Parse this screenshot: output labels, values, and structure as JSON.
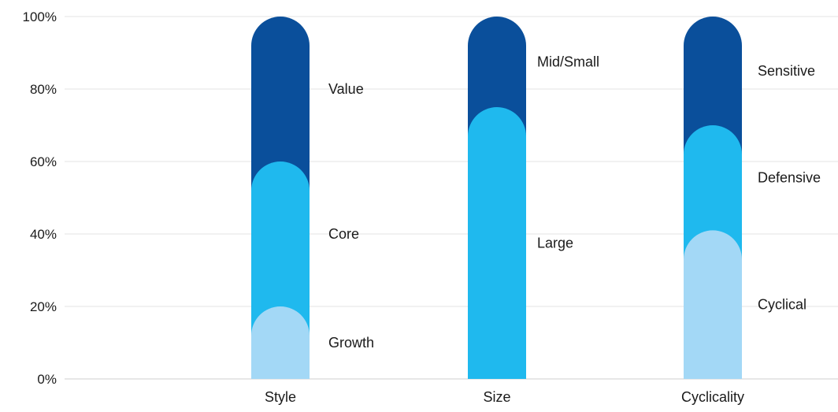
{
  "chart_data": {
    "type": "bar",
    "stacked": true,
    "categories": [
      "Style",
      "Size",
      "Cyclicality"
    ],
    "ylim": [
      0,
      100
    ],
    "yticks": [
      "0%",
      "20%",
      "40%",
      "60%",
      "80%",
      "100%"
    ],
    "grid": true,
    "legend": "inline labels beside bars",
    "colors": {
      "dark": "#0a4f9b",
      "mid": "#1fb9ee",
      "light": "#a3d8f6",
      "grid": "#e3e3e3",
      "axis": "#cfcfcf"
    },
    "bars": [
      {
        "category": "Style",
        "segments": [
          {
            "name": "Growth",
            "from": 0,
            "to": 20,
            "tone": "light"
          },
          {
            "name": "Core",
            "from": 20,
            "to": 60,
            "tone": "mid"
          },
          {
            "name": "Value",
            "from": 60,
            "to": 100,
            "tone": "dark"
          }
        ]
      },
      {
        "category": "Size",
        "segments": [
          {
            "name": "Large",
            "from": 0,
            "to": 75,
            "tone": "mid"
          },
          {
            "name": "Mid/Small",
            "from": 75,
            "to": 100,
            "tone": "dark"
          }
        ]
      },
      {
        "category": "Cyclicality",
        "segments": [
          {
            "name": "Cyclical",
            "from": 0,
            "to": 41,
            "tone": "light"
          },
          {
            "name": "Defensive",
            "from": 41,
            "to": 70,
            "tone": "mid"
          },
          {
            "name": "Sensitive",
            "from": 70,
            "to": 100,
            "tone": "dark"
          }
        ]
      }
    ]
  }
}
